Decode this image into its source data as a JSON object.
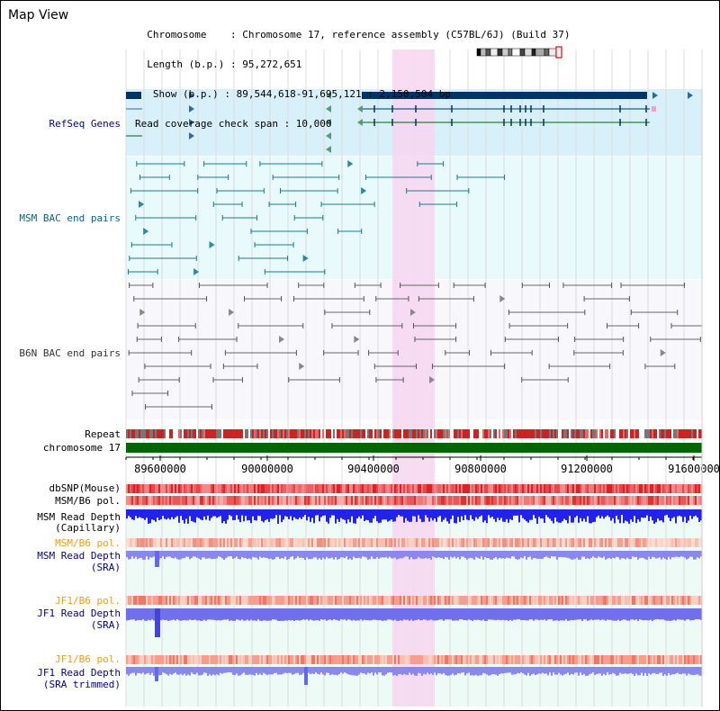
{
  "header": {
    "title": "Map View",
    "info_lines": [
      "  Chromosome    : Chromosome 17, reference assembly (C57BL/6J) (Build 37)",
      "  Length (b.p.) : 95,272,651",
      "   Show (b.p.) : 89,544,618-91,695,121 : 2,150,504 bp",
      "Read coverage check span : 10,000"
    ]
  },
  "tracks": {
    "refseq": "RefSeq Genes",
    "msm_bac": "MSM BAC end pairs",
    "b6n_bac": "B6N BAC end pairs",
    "repeat": "Repeat",
    "chromosome": "chromosome 17",
    "dbsnp": "dbSNP(Mouse)",
    "msm_b6_pol_1": "MSM/B6 pol.",
    "msm_read_depth_cap_1": "MSM Read Depth",
    "msm_read_depth_cap_2": "(Capillary)",
    "msm_b6_pol_2": "MSM/B6 pol.",
    "msm_read_depth_sra_1": "MSM Read Depth",
    "msm_read_depth_sra_2": "(SRA)",
    "jf1_b6_pol_1": "JF1/B6 pol.",
    "jf1_read_depth_sra_1": "JF1 Read Depth",
    "jf1_read_depth_sra_2": "(SRA)",
    "jf1_b6_pol_2": "JF1/B6 pol.",
    "jf1_read_depth_trim_1": "JF1 Read Depth",
    "jf1_read_depth_trim_2": "(SRA trimmed)"
  },
  "axis": {
    "ticks": [
      "89600000",
      "90000000",
      "90400000",
      "90800000",
      "91200000",
      "91600000"
    ]
  },
  "colors": {
    "refseq_label": "#000099",
    "msm_bac_label": "#006688",
    "b6n_bac_label": "#333333",
    "pol_orange": "#ff9900",
    "depth_blue": "#000099",
    "highlight": "#f7d6f0",
    "refseq_bg": "#d8f0fa",
    "msm_bg": "#e8fafc",
    "chromosome_bar": "#006600"
  }
}
